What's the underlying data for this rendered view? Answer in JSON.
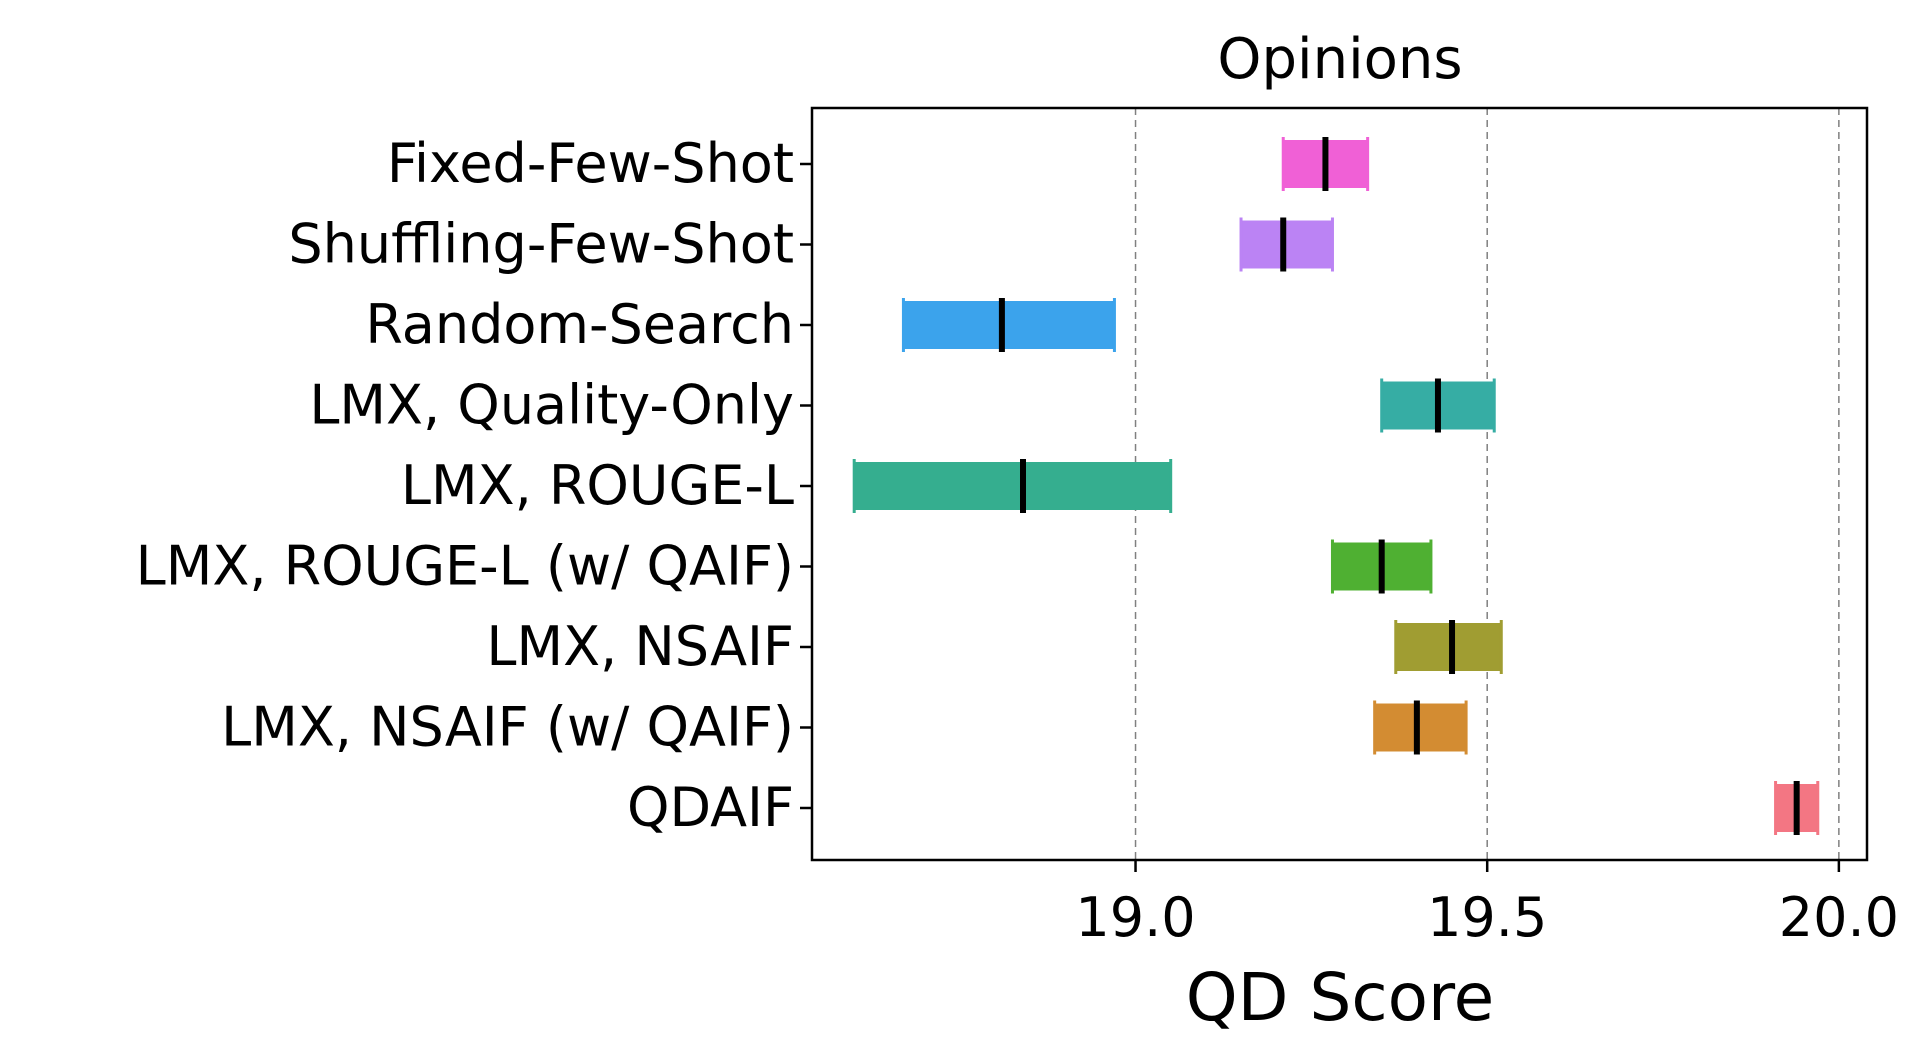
{
  "chart_data": {
    "type": "range-bar",
    "title": "Opinions",
    "xlabel": "QD Score",
    "ylabel": "",
    "xlim": [
      18.54,
      20.04
    ],
    "xticks": [
      19.0,
      19.5,
      20.0
    ],
    "xtick_labels": [
      "19.0",
      "19.5",
      "20.0"
    ],
    "grid": "vertical-dashed",
    "categories": [
      "Fixed-Few-Shot",
      "Shuffling-Few-Shot",
      "Random-Search",
      "LMX, Quality-Only",
      "LMX, ROUGE-L",
      "LMX, ROUGE-L (w/ QAIF)",
      "LMX, NSAIF",
      "LMX, NSAIF (w/ QAIF)",
      "QDAIF"
    ],
    "series": [
      {
        "name": "Fixed-Few-Shot",
        "low": 19.21,
        "high": 19.33,
        "mean": 19.27,
        "color": "#f060d6"
      },
      {
        "name": "Shuffling-Few-Shot",
        "low": 19.15,
        "high": 19.28,
        "mean": 19.21,
        "color": "#bb83f4"
      },
      {
        "name": "Random-Search",
        "low": 18.67,
        "high": 18.97,
        "mean": 18.81,
        "color": "#3ba3ec"
      },
      {
        "name": "LMX, Quality-Only",
        "low": 19.35,
        "high": 19.51,
        "mean": 19.43,
        "color": "#36ada4"
      },
      {
        "name": "LMX, ROUGE-L",
        "low": 18.6,
        "high": 19.05,
        "mean": 18.84,
        "color": "#35ae8f"
      },
      {
        "name": "LMX, ROUGE-L (w/ QAIF)",
        "low": 19.28,
        "high": 19.42,
        "mean": 19.35,
        "color": "#4fb032"
      },
      {
        "name": "LMX, NSAIF",
        "low": 19.37,
        "high": 19.52,
        "mean": 19.45,
        "color": "#a09d32"
      },
      {
        "name": "LMX, NSAIF (w/ QAIF)",
        "low": 19.34,
        "high": 19.47,
        "mean": 19.4,
        "color": "#d38c32"
      },
      {
        "name": "QDAIF",
        "low": 19.91,
        "high": 19.97,
        "mean": 19.94,
        "color": "#f37683"
      }
    ]
  }
}
